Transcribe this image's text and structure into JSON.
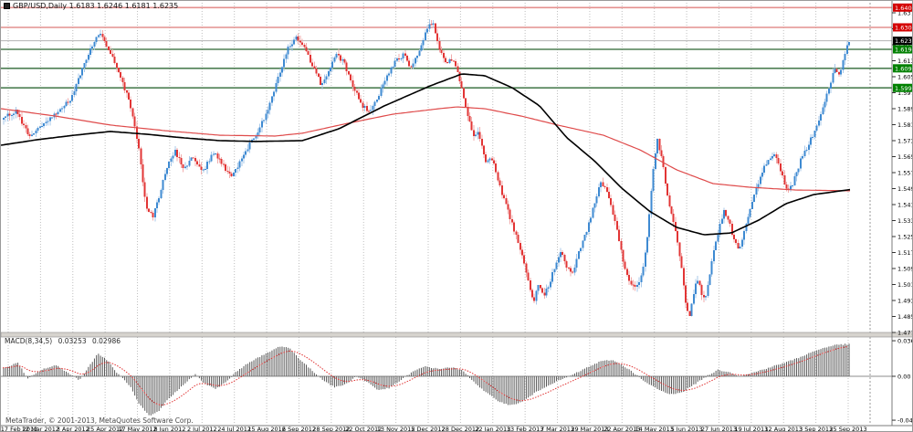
{
  "window": {
    "title": "GBP/USD,Daily 1.6183 1.6246 1.6181 1.6235"
  },
  "footer": "MetaTrader, © 2001-2013, MetaQuotes Software Corp.",
  "chart_data": {
    "type": "candlestick",
    "symbol": "GBP/USD",
    "timeframe": "Daily",
    "ohlc_display": {
      "open": "1.6183",
      "high": "1.6246",
      "low": "1.6181",
      "close": "1.6235"
    },
    "price_axis": {
      "min": 1.4775,
      "max": 1.643,
      "tick_labels": [
        "1.6375",
        "1.6295",
        "1.6215",
        "1.6135",
        "1.6055",
        "1.5975",
        "1.5895",
        "1.5815",
        "1.5735",
        "1.5655",
        "1.5575",
        "1.5495",
        "1.5415",
        "1.5335",
        "1.5255",
        "1.5175",
        "1.5095",
        "1.5015",
        "1.4935",
        "1.4855",
        "1.4775"
      ]
    },
    "x_labels": [
      "17 Feb 2012",
      "12 Mar 2012",
      "3 Apr 2012",
      "25 Apr 2012",
      "17 May 2012",
      "8 Jun 2012",
      "2 Jul 2012",
      "24 Jul 2012",
      "15 Aug 2012",
      "6 Sep 2012",
      "28 Sep 2012",
      "22 Oct 2012",
      "13 Nov 2012",
      "5 Dec 2012",
      "28 Dec 2012",
      "22 Jan 2013",
      "13 Feb 2013",
      "7 Mar 2013",
      "29 Mar 2013",
      "22 Apr 2013",
      "14 May 2013",
      "5 Jun 2013",
      "27 Jun 2013",
      "19 Jul 2013",
      "12 Aug 2013",
      "3 Sep 2013",
      "25 Sep 2013"
    ],
    "hlines": [
      {
        "price": 1.6401,
        "kind": "resistance",
        "color": "#e4918f"
      },
      {
        "price": 1.6302,
        "kind": "resistance",
        "color": "#e4918f"
      },
      {
        "price": 1.6235,
        "kind": "current-price",
        "color": "#b3b3b3"
      },
      {
        "price": 1.6192,
        "kind": "support",
        "color": "#4e7f53"
      },
      {
        "price": 1.6097,
        "kind": "support",
        "color": "#4e7f53"
      },
      {
        "price": 1.5999,
        "kind": "support",
        "color": "#4e7f53"
      }
    ],
    "price_badges": [
      {
        "text": "1.6401",
        "bg": "#d40000",
        "price": 1.6401
      },
      {
        "text": "1.6302",
        "bg": "#d40000",
        "price": 1.6302
      },
      {
        "text": "1.6235",
        "bg": "#000000",
        "price": 1.6235
      },
      {
        "text": "1.6192",
        "bg": "#008000",
        "price": 1.6192
      },
      {
        "text": "1.6097",
        "bg": "#008000",
        "price": 1.6097
      },
      {
        "text": "1.5999",
        "bg": "#008000",
        "price": 1.5999
      }
    ],
    "close_path": [
      [
        0,
        1.584
      ],
      [
        15,
        1.5886
      ],
      [
        30,
        1.5758
      ],
      [
        45,
        1.5817
      ],
      [
        60,
        1.5877
      ],
      [
        75,
        1.5941
      ],
      [
        90,
        1.6114
      ],
      [
        105,
        1.6274
      ],
      [
        112,
        1.6242
      ],
      [
        120,
        1.616
      ],
      [
        130,
        1.6046
      ],
      [
        140,
        1.5932
      ],
      [
        150,
        1.5703
      ],
      [
        158,
        1.5406
      ],
      [
        165,
        1.5351
      ],
      [
        172,
        1.5452
      ],
      [
        180,
        1.5589
      ],
      [
        190,
        1.568
      ],
      [
        200,
        1.5598
      ],
      [
        210,
        1.5657
      ],
      [
        220,
        1.5575
      ],
      [
        232,
        1.568
      ],
      [
        242,
        1.5612
      ],
      [
        252,
        1.5552
      ],
      [
        262,
        1.5634
      ],
      [
        272,
        1.5726
      ],
      [
        282,
        1.5794
      ],
      [
        292,
        1.5895
      ],
      [
        302,
        1.6046
      ],
      [
        312,
        1.6183
      ],
      [
        322,
        1.6252
      ],
      [
        330,
        1.6215
      ],
      [
        340,
        1.6114
      ],
      [
        350,
        1.6014
      ],
      [
        358,
        1.6091
      ],
      [
        367,
        1.6169
      ],
      [
        375,
        1.6123
      ],
      [
        385,
        1.6
      ],
      [
        395,
        1.5909
      ],
      [
        403,
        1.5877
      ],
      [
        412,
        1.5954
      ],
      [
        420,
        1.6046
      ],
      [
        430,
        1.6123
      ],
      [
        440,
        1.6169
      ],
      [
        448,
        1.6105
      ],
      [
        458,
        1.6197
      ],
      [
        466,
        1.6297
      ],
      [
        472,
        1.6334
      ],
      [
        478,
        1.6215
      ],
      [
        486,
        1.6123
      ],
      [
        494,
        1.6151
      ],
      [
        500,
        1.6069
      ],
      [
        508,
        1.5909
      ],
      [
        516,
        1.5758
      ],
      [
        522,
        1.5772
      ],
      [
        530,
        1.5621
      ],
      [
        538,
        1.5648
      ],
      [
        546,
        1.5497
      ],
      [
        554,
        1.5392
      ],
      [
        560,
        1.5301
      ],
      [
        568,
        1.5191
      ],
      [
        576,
        1.504
      ],
      [
        582,
        1.4926
      ],
      [
        588,
        1.5008
      ],
      [
        594,
        1.4963
      ],
      [
        600,
        1.5027
      ],
      [
        607,
        1.5118
      ],
      [
        613,
        1.5177
      ],
      [
        619,
        1.51
      ],
      [
        625,
        1.5072
      ],
      [
        633,
        1.5191
      ],
      [
        641,
        1.5283
      ],
      [
        649,
        1.542
      ],
      [
        656,
        1.5529
      ],
      [
        662,
        1.5497
      ],
      [
        668,
        1.5392
      ],
      [
        674,
        1.5283
      ],
      [
        680,
        1.5146
      ],
      [
        686,
        1.504
      ],
      [
        692,
        1.5008
      ],
      [
        698,
        1.5027
      ],
      [
        703,
        1.5109
      ],
      [
        708,
        1.5292
      ],
      [
        713,
        1.5566
      ],
      [
        718,
        1.5735
      ],
      [
        723,
        1.5648
      ],
      [
        728,
        1.5484
      ],
      [
        733,
        1.5374
      ],
      [
        739,
        1.5269
      ],
      [
        745,
        1.5086
      ],
      [
        750,
        1.4889
      ],
      [
        753,
        1.4857
      ],
      [
        757,
        1.4963
      ],
      [
        762,
        1.504
      ],
      [
        766,
        1.4981
      ],
      [
        770,
        1.4926
      ],
      [
        775,
        1.5063
      ],
      [
        780,
        1.5191
      ],
      [
        786,
        1.5301
      ],
      [
        791,
        1.5383
      ],
      [
        796,
        1.5338
      ],
      [
        801,
        1.5255
      ],
      [
        806,
        1.5187
      ],
      [
        811,
        1.5237
      ],
      [
        816,
        1.5329
      ],
      [
        821,
        1.542
      ],
      [
        826,
        1.5493
      ],
      [
        831,
        1.5557
      ],
      [
        836,
        1.5612
      ],
      [
        841,
        1.5648
      ],
      [
        846,
        1.5671
      ],
      [
        851,
        1.5612
      ],
      [
        856,
        1.5538
      ],
      [
        861,
        1.5475
      ],
      [
        866,
        1.552
      ],
      [
        871,
        1.5584
      ],
      [
        876,
        1.5648
      ],
      [
        881,
        1.5694
      ],
      [
        886,
        1.574
      ],
      [
        891,
        1.5785
      ],
      [
        896,
        1.5849
      ],
      [
        901,
        1.5922
      ],
      [
        906,
        1.5995
      ],
      [
        910,
        1.6059
      ],
      [
        913,
        1.6105
      ],
      [
        916,
        1.6041
      ],
      [
        919,
        1.6087
      ],
      [
        922,
        1.6151
      ],
      [
        925,
        1.6197
      ],
      [
        928,
        1.6233
      ]
    ],
    "ma_black": [
      [
        0,
        1.5712
      ],
      [
        40,
        1.574
      ],
      [
        80,
        1.5762
      ],
      [
        120,
        1.5781
      ],
      [
        160,
        1.5767
      ],
      [
        200,
        1.5749
      ],
      [
        240,
        1.5735
      ],
      [
        280,
        1.5731
      ],
      [
        330,
        1.5735
      ],
      [
        370,
        1.5794
      ],
      [
        420,
        1.5909
      ],
      [
        470,
        1.6009
      ],
      [
        505,
        1.6069
      ],
      [
        530,
        1.606
      ],
      [
        560,
        1.6
      ],
      [
        590,
        1.5909
      ],
      [
        620,
        1.5749
      ],
      [
        650,
        1.5634
      ],
      [
        680,
        1.5497
      ],
      [
        710,
        1.5383
      ],
      [
        740,
        1.5301
      ],
      [
        770,
        1.5264
      ],
      [
        800,
        1.5273
      ],
      [
        830,
        1.5337
      ],
      [
        860,
        1.542
      ],
      [
        890,
        1.5465
      ],
      [
        930,
        1.549
      ]
    ],
    "ma_red": [
      [
        0,
        1.5895
      ],
      [
        60,
        1.5858
      ],
      [
        120,
        1.5813
      ],
      [
        180,
        1.5785
      ],
      [
        240,
        1.5762
      ],
      [
        300,
        1.5758
      ],
      [
        330,
        1.5772
      ],
      [
        380,
        1.5822
      ],
      [
        430,
        1.5868
      ],
      [
        480,
        1.5895
      ],
      [
        500,
        1.5904
      ],
      [
        530,
        1.5895
      ],
      [
        570,
        1.5858
      ],
      [
        610,
        1.5813
      ],
      [
        660,
        1.5762
      ],
      [
        700,
        1.5689
      ],
      [
        740,
        1.5589
      ],
      [
        780,
        1.552
      ],
      [
        820,
        1.5502
      ],
      [
        870,
        1.5488
      ],
      [
        930,
        1.5484
      ]
    ],
    "macd": {
      "label": "MACD(8,34,5)",
      "value_main": "0.03253",
      "value_signal": "0.02986",
      "scale_labels": [
        "0.0362",
        "0.00",
        "-0.0447"
      ],
      "scale_values": [
        0.0362,
        0.0,
        -0.0447
      ],
      "keyframes": [
        [
          0,
          0.0074
        ],
        [
          18,
          0.014
        ],
        [
          28,
          -0.0028
        ],
        [
          45,
          0.0074
        ],
        [
          60,
          0.0112
        ],
        [
          75,
          0.0019
        ],
        [
          85,
          -0.0037
        ],
        [
          95,
          0.0093
        ],
        [
          105,
          0.0233
        ],
        [
          115,
          0.0168
        ],
        [
          125,
          0.0047
        ],
        [
          140,
          -0.0093
        ],
        [
          150,
          -0.0279
        ],
        [
          162,
          -0.041
        ],
        [
          172,
          -0.0354
        ],
        [
          182,
          -0.0233
        ],
        [
          192,
          -0.0149
        ],
        [
          202,
          -0.0056
        ],
        [
          212,
          0.0019
        ],
        [
          222,
          -0.0074
        ],
        [
          234,
          -0.013
        ],
        [
          246,
          -0.0056
        ],
        [
          258,
          0.0056
        ],
        [
          272,
          0.0149
        ],
        [
          288,
          0.0223
        ],
        [
          305,
          0.0307
        ],
        [
          315,
          0.0289
        ],
        [
          327,
          0.0168
        ],
        [
          340,
          0.0056
        ],
        [
          352,
          -0.0037
        ],
        [
          364,
          -0.0112
        ],
        [
          376,
          -0.0084
        ],
        [
          388,
          0.0
        ],
        [
          400,
          -0.0056
        ],
        [
          412,
          -0.014
        ],
        [
          424,
          -0.0121
        ],
        [
          436,
          -0.0047
        ],
        [
          450,
          0.0047
        ],
        [
          464,
          0.0102
        ],
        [
          478,
          0.0074
        ],
        [
          492,
          0.0093
        ],
        [
          505,
          0.0056
        ],
        [
          515,
          -0.0037
        ],
        [
          528,
          -0.0149
        ],
        [
          542,
          -0.0242
        ],
        [
          556,
          -0.0298
        ],
        [
          570,
          -0.0261
        ],
        [
          584,
          -0.0168
        ],
        [
          598,
          -0.0093
        ],
        [
          612,
          -0.0037
        ],
        [
          626,
          0.0019
        ],
        [
          640,
          0.0084
        ],
        [
          655,
          0.0149
        ],
        [
          668,
          0.0168
        ],
        [
          680,
          0.0112
        ],
        [
          692,
          0.0037
        ],
        [
          704,
          -0.0056
        ],
        [
          718,
          -0.013
        ],
        [
          732,
          -0.0186
        ],
        [
          746,
          -0.0158
        ],
        [
          760,
          -0.0074
        ],
        [
          772,
          0.0
        ],
        [
          784,
          0.0065
        ],
        [
          796,
          0.0047
        ],
        [
          808,
          0.0
        ],
        [
          820,
          0.0028
        ],
        [
          832,
          0.0065
        ],
        [
          845,
          0.0102
        ],
        [
          858,
          0.014
        ],
        [
          872,
          0.0186
        ],
        [
          886,
          0.0242
        ],
        [
          900,
          0.0289
        ],
        [
          912,
          0.0317
        ],
        [
          922,
          0.0326
        ],
        [
          928,
          0.0325
        ]
      ]
    },
    "colors": {
      "up_body": "#3e8ad2",
      "up_wick": "#a9c9ea",
      "down_body": "#e23535",
      "down_wick": "#f1acac",
      "ma_black": "#000000",
      "ma_red": "#df4b4b",
      "grid": "#bfbfbf",
      "axis_line": "#7b7b7b",
      "macd_bar": "#585858",
      "macd_zero": "#8c8c8c",
      "macd_signal": "#e03232",
      "shift_line": "#9a9a9a"
    }
  }
}
